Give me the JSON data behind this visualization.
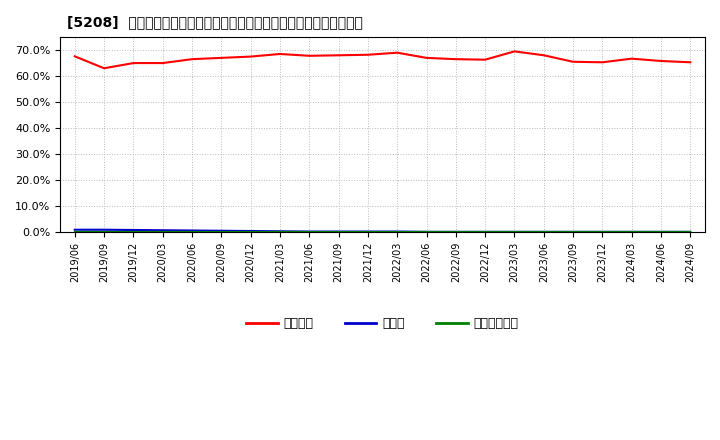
{
  "title": "[5208]  自己資本、のれん、繰延税金資産の総資産に対する比率の推移",
  "background_color": "#ffffff",
  "plot_bg_color": "#ffffff",
  "grid_color": "#bbbbbb",
  "ylim": [
    0.0,
    0.75
  ],
  "yticks": [
    0.0,
    0.1,
    0.2,
    0.3,
    0.4,
    0.5,
    0.6,
    0.7
  ],
  "labels": [
    "2019/06",
    "2019/09",
    "2019/12",
    "2020/03",
    "2020/06",
    "2020/09",
    "2020/12",
    "2021/03",
    "2021/06",
    "2021/09",
    "2021/12",
    "2022/03",
    "2022/06",
    "2022/09",
    "2022/12",
    "2023/03",
    "2023/06",
    "2023/09",
    "2023/12",
    "2024/03",
    "2024/06",
    "2024/09"
  ],
  "series": [
    {
      "name": "自己資本",
      "color": "#ff0000",
      "values": [
        0.676,
        0.63,
        0.65,
        0.65,
        0.665,
        0.67,
        0.675,
        0.685,
        0.678,
        0.68,
        0.682,
        0.69,
        0.67,
        0.665,
        0.663,
        0.695,
        0.68,
        0.655,
        0.653,
        0.667,
        0.658,
        0.653
      ]
    },
    {
      "name": "のれん",
      "color": "#0000cc",
      "values": [
        0.008,
        0.008,
        0.007,
        0.006,
        0.005,
        0.004,
        0.003,
        0.002,
        0.001,
        0.001,
        0.001,
        0.001,
        0.0,
        0.0,
        0.0,
        0.0,
        0.0,
        0.0,
        0.0,
        0.0,
        0.0,
        0.0
      ]
    },
    {
      "name": "繰延税金資産",
      "color": "#008000",
      "values": [
        0.0,
        0.0,
        0.0,
        0.0,
        0.0,
        0.0,
        0.0,
        0.0,
        0.0,
        0.0,
        0.0,
        0.0,
        0.0,
        0.0,
        0.0,
        0.0,
        0.0,
        0.0,
        0.0,
        0.0,
        0.0,
        0.0
      ]
    }
  ]
}
